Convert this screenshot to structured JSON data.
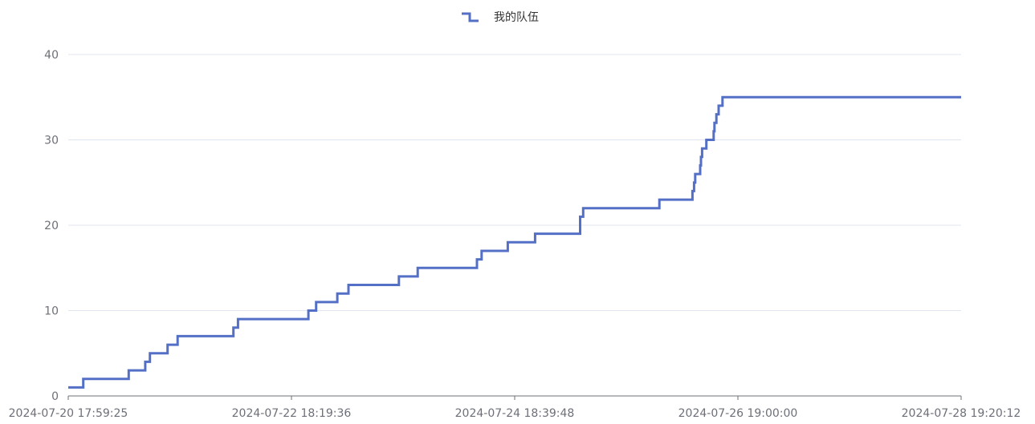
{
  "chart_data": {
    "type": "line",
    "step": true,
    "legend": {
      "position": "top-center",
      "items": [
        {
          "name": "我的队伍",
          "color": "#5470c6"
        }
      ]
    },
    "y_axis": {
      "ylim": [
        0,
        40
      ],
      "ticks": [
        0,
        10,
        20,
        30,
        40
      ],
      "tick_labels": [
        "0",
        "10",
        "20",
        "30",
        "40"
      ],
      "grid": true
    },
    "x_axis": {
      "range": [
        "2024-07-20 17:59:25",
        "2024-07-28 19:20:12"
      ],
      "tick_labels": [
        "2024-07-20 17:59:25",
        "2024-07-22 18:19:36",
        "2024-07-24 18:39:48",
        "2024-07-26 19:00:00",
        "2024-07-28 19:20:12"
      ]
    },
    "series": [
      {
        "name": "我的队伍",
        "color": "#5470c6",
        "points": [
          {
            "x": "2024-07-20 17:59:25",
            "y": 1
          },
          {
            "x": "2024-07-20 21:15:00",
            "y": 2
          },
          {
            "x": "2024-07-21 07:05:00",
            "y": 3
          },
          {
            "x": "2024-07-21 10:40:00",
            "y": 4
          },
          {
            "x": "2024-07-21 11:40:00",
            "y": 5
          },
          {
            "x": "2024-07-21 15:30:00",
            "y": 6
          },
          {
            "x": "2024-07-21 17:40:00",
            "y": 7
          },
          {
            "x": "2024-07-22 05:45:00",
            "y": 8
          },
          {
            "x": "2024-07-22 06:45:00",
            "y": 9
          },
          {
            "x": "2024-07-22 22:00:00",
            "y": 10
          },
          {
            "x": "2024-07-22 23:40:00",
            "y": 11
          },
          {
            "x": "2024-07-23 04:15:00",
            "y": 12
          },
          {
            "x": "2024-07-23 06:40:00",
            "y": 13
          },
          {
            "x": "2024-07-23 17:35:00",
            "y": 14
          },
          {
            "x": "2024-07-23 21:40:00",
            "y": 15
          },
          {
            "x": "2024-07-24 10:30:00",
            "y": 16
          },
          {
            "x": "2024-07-24 11:30:00",
            "y": 17
          },
          {
            "x": "2024-07-24 17:10:00",
            "y": 18
          },
          {
            "x": "2024-07-24 23:05:00",
            "y": 19
          },
          {
            "x": "2024-07-25 08:50:00",
            "y": 21
          },
          {
            "x": "2024-07-25 09:30:00",
            "y": 22
          },
          {
            "x": "2024-07-26 02:00:00",
            "y": 23
          },
          {
            "x": "2024-07-26 09:10:00",
            "y": 24
          },
          {
            "x": "2024-07-26 09:30:00",
            "y": 25
          },
          {
            "x": "2024-07-26 09:45:00",
            "y": 26
          },
          {
            "x": "2024-07-26 10:50:00",
            "y": 27
          },
          {
            "x": "2024-07-26 11:00:00",
            "y": 28
          },
          {
            "x": "2024-07-26 11:15:00",
            "y": 29
          },
          {
            "x": "2024-07-26 12:10:00",
            "y": 30
          },
          {
            "x": "2024-07-26 13:45:00",
            "y": 31
          },
          {
            "x": "2024-07-26 13:55:00",
            "y": 32
          },
          {
            "x": "2024-07-26 14:20:00",
            "y": 33
          },
          {
            "x": "2024-07-26 14:50:00",
            "y": 34
          },
          {
            "x": "2024-07-26 15:40:00",
            "y": 35
          }
        ],
        "end": {
          "x": "2024-07-28 19:20:12",
          "y": 35
        }
      }
    ]
  }
}
